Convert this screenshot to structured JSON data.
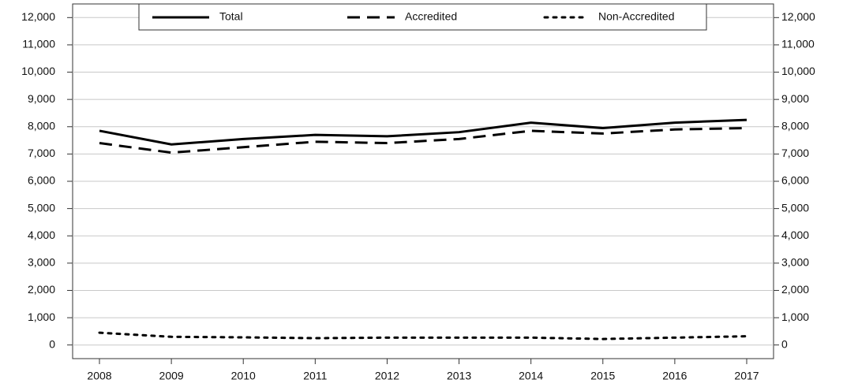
{
  "chart_data": {
    "type": "line",
    "categories": [
      "2008",
      "2009",
      "2010",
      "2011",
      "2012",
      "2013",
      "2014",
      "2015",
      "2016",
      "2017"
    ],
    "series": [
      {
        "name": "Total",
        "color": "#000000",
        "style": "solid",
        "values": [
          7850,
          7350,
          7550,
          7700,
          7650,
          7800,
          8150,
          7950,
          8150,
          8250
        ]
      },
      {
        "name": "Accredited",
        "color": "#000000",
        "style": "dashed",
        "values": [
          7400,
          7050,
          7250,
          7450,
          7400,
          7550,
          7850,
          7750,
          7900,
          7950
        ]
      },
      {
        "name": "Non-Accredited",
        "color": "#000000",
        "style": "dotted",
        "values": [
          450,
          300,
          280,
          250,
          270,
          270,
          270,
          220,
          270,
          320
        ]
      }
    ],
    "ylim": [
      -500,
      12500
    ],
    "yticks": [
      0,
      {
        "value": 1000,
        "label": "1,000"
      },
      {
        "value": 2000,
        "label": "2,000"
      },
      {
        "value": 3000,
        "label": "3,000"
      },
      {
        "value": 4000,
        "label": "4,000"
      },
      {
        "value": 5000,
        "label": "5,000"
      },
      {
        "value": 6000,
        "label": "6,000"
      },
      {
        "value": 7000,
        "label": "7,000"
      },
      {
        "value": 8000,
        "label": "8,000"
      },
      {
        "value": 9000,
        "label": "9,000"
      },
      {
        "value": 10000,
        "label": "10,000"
      },
      {
        "value": 11000,
        "label": "11,000"
      },
      {
        "value": 12000,
        "label": "12,000"
      }
    ],
    "y2lim": [
      -500,
      12500
    ],
    "y2ticks": [
      0,
      {
        "value": 1000,
        "label": "1,000"
      },
      {
        "value": 2000,
        "label": "2,000"
      },
      {
        "value": 3000,
        "label": "3,000"
      },
      {
        "value": 4000,
        "label": "4,000"
      },
      {
        "value": 5000,
        "label": "5,000"
      },
      {
        "value": 6000,
        "label": "6,000"
      },
      {
        "value": 7000,
        "label": "7,000"
      },
      {
        "value": 8000,
        "label": "8,000"
      },
      {
        "value": 9000,
        "label": "9,000"
      },
      {
        "value": 10000,
        "label": "10,000"
      },
      {
        "value": 11000,
        "label": "11,000"
      },
      {
        "value": 12000,
        "label": "12,000"
      }
    ],
    "grid": true,
    "legend": "top"
  }
}
